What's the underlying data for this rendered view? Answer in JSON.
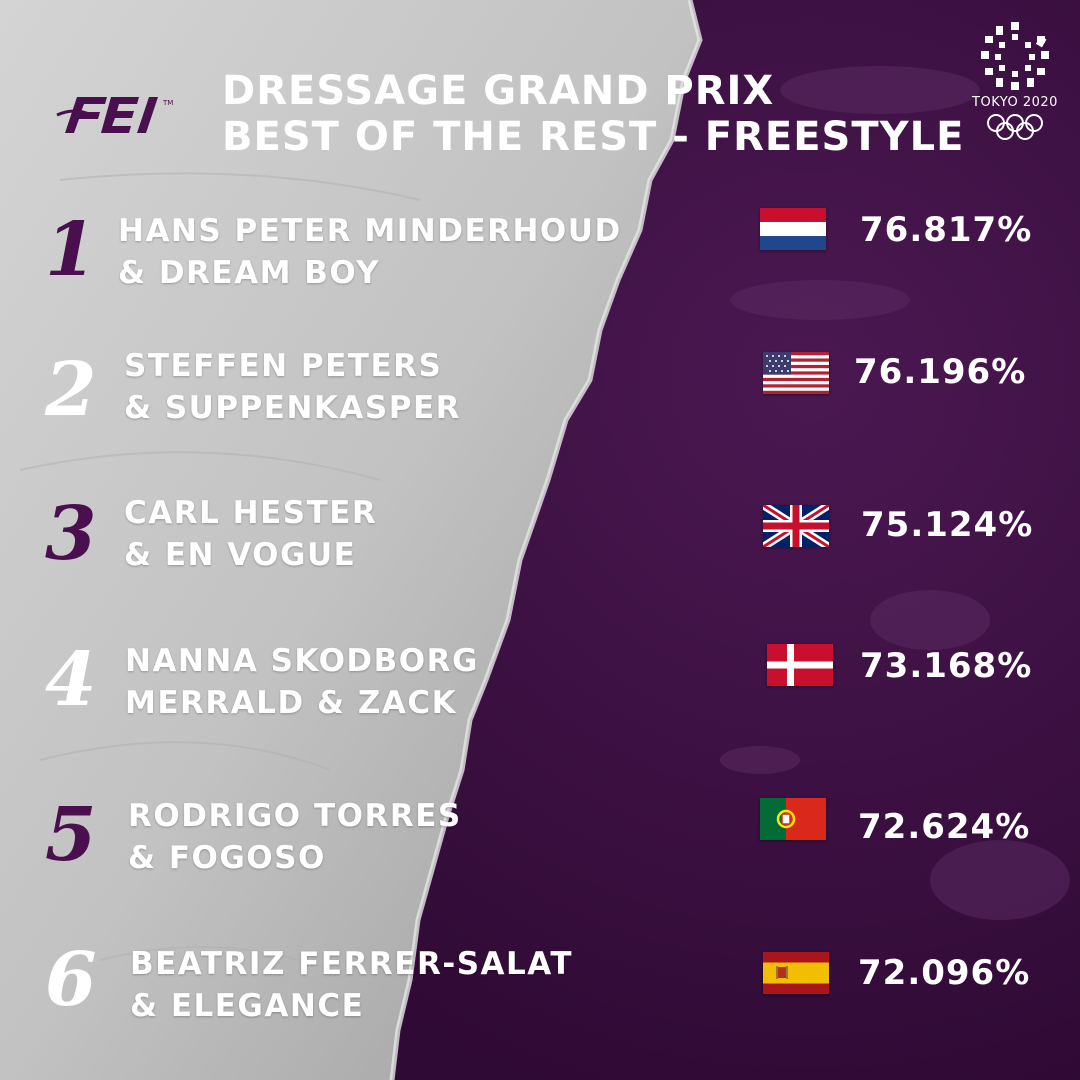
{
  "header": {
    "title_line1": "DRESSAGE GRAND PRIX",
    "title_line2": "BEST OF THE REST - FREESTYLE",
    "fei_logo_text": "FEI",
    "olympic_text": "TOKYO 2020"
  },
  "colors": {
    "purple": "#3f0f45",
    "grey": "#c9c9c9",
    "rank_purple": "#4a0f4f",
    "rank_white": "#ffffff"
  },
  "results": [
    {
      "rank": "1",
      "name_line1": "HANS PETER MINDERHOUD",
      "name_line2": "& DREAM BOY",
      "score": "76.817%",
      "flag": "netherlands-flag"
    },
    {
      "rank": "2",
      "name_line1": "STEFFEN PETERS",
      "name_line2": "& SUPPENKASPER",
      "score": "76.196%",
      "flag": "usa-flag"
    },
    {
      "rank": "3",
      "name_line1": "CARL HESTER",
      "name_line2": "& EN VOGUE",
      "score": "75.124%",
      "flag": "uk-flag"
    },
    {
      "rank": "4",
      "name_line1": "NANNA SKODBORG",
      "name_line2": "MERRALD & ZACK",
      "score": "73.168%",
      "flag": "denmark-flag"
    },
    {
      "rank": "5",
      "name_line1": "RODRIGO TORRES",
      "name_line2": "& FOGOSO",
      "score": "72.624%",
      "flag": "portugal-flag"
    },
    {
      "rank": "6",
      "name_line1": "BEATRIZ FERRER-SALAT",
      "name_line2": "& ELEGANCE",
      "score": "72.096%",
      "flag": "spain-flag"
    }
  ]
}
